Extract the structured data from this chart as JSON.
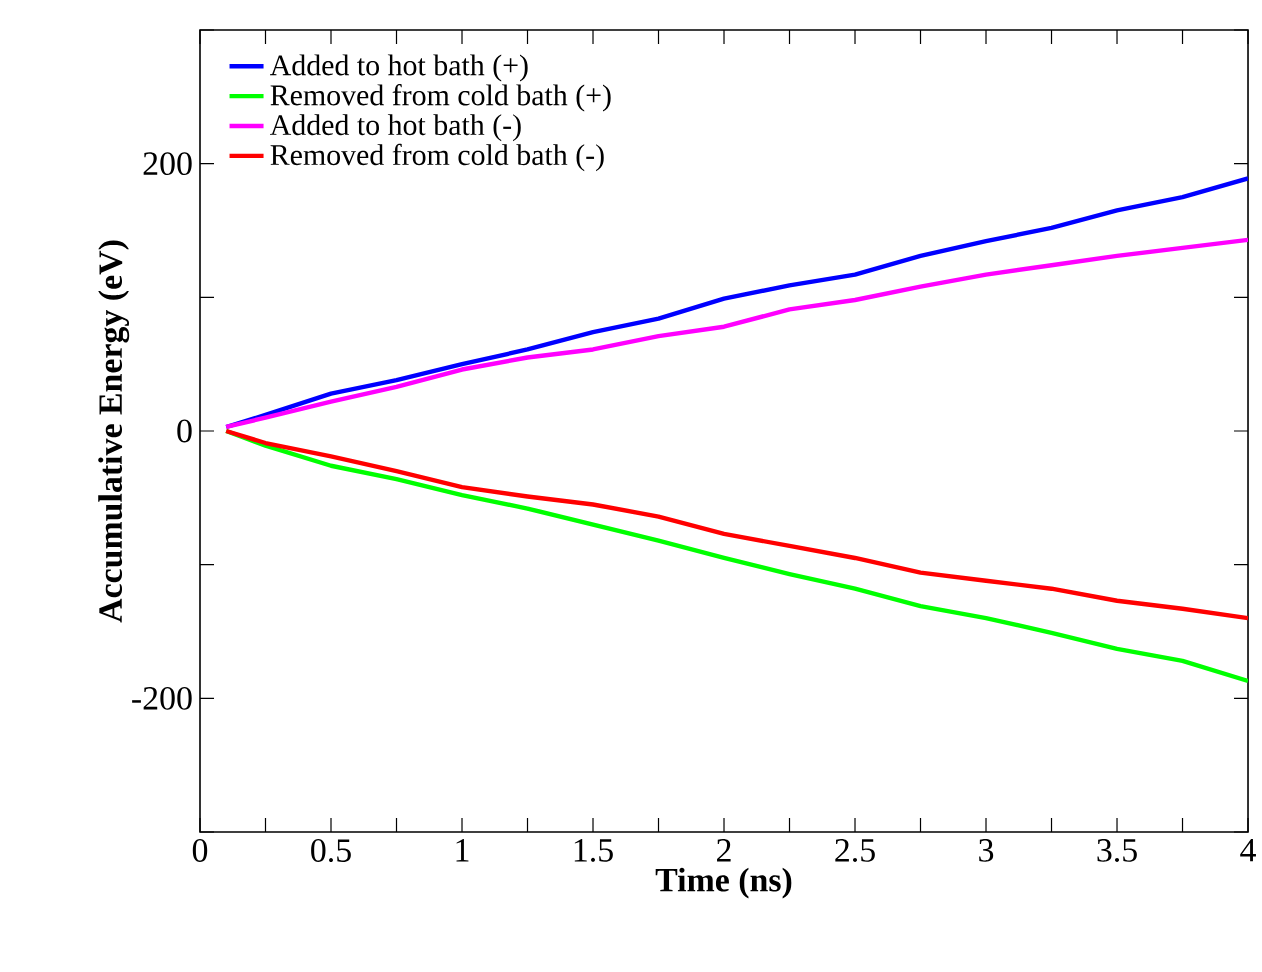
{
  "chart_data": {
    "type": "line",
    "xlabel": "Time (ns)",
    "ylabel": "Accumulative Energy (eV)",
    "x": [
      0.1,
      0.25,
      0.5,
      0.75,
      1.0,
      1.25,
      1.5,
      1.75,
      2.0,
      2.25,
      2.5,
      2.75,
      3.0,
      3.25,
      3.5,
      3.75,
      4.0
    ],
    "series": [
      {
        "name": "Added to hot bath (+)",
        "color": "#0000ff",
        "values": [
          3,
          12,
          28,
          38,
          50,
          61,
          74,
          84,
          99,
          109,
          117,
          131,
          142,
          152,
          165,
          175,
          189
        ]
      },
      {
        "name": "Removed from cold bath (+)",
        "color": "#00ff00",
        "values": [
          0,
          -11,
          -26,
          -36,
          -48,
          -58,
          -70,
          -82,
          -95,
          -107,
          -118,
          -131,
          -140,
          -151,
          -163,
          -172,
          -187
        ]
      },
      {
        "name": "Added to hot bath (-)",
        "color": "#ff00ff",
        "values": [
          3,
          10,
          22,
          33,
          46,
          55,
          61,
          71,
          78,
          91,
          98,
          108,
          117,
          124,
          131,
          137,
          143
        ]
      },
      {
        "name": "Removed from cold bath (-)",
        "color": "#ff0000",
        "values": [
          0,
          -9,
          -19,
          -30,
          -42,
          -49,
          -55,
          -64,
          -77,
          -86,
          -95,
          -106,
          -112,
          -118,
          -127,
          -133,
          -140
        ]
      }
    ],
    "xlim": [
      0,
      4
    ],
    "ylim": [
      -300,
      300
    ],
    "xticks": [
      0,
      {
        "value": 0.25,
        "label": null
      },
      0.5,
      {
        "value": 0.75,
        "label": null
      },
      1,
      {
        "value": 1.25,
        "label": null
      },
      1.5,
      {
        "value": 1.75,
        "label": null
      },
      2,
      {
        "value": 2.25,
        "label": null
      },
      2.5,
      {
        "value": 2.75,
        "label": null
      },
      3,
      {
        "value": 3.25,
        "label": null
      },
      3.5,
      {
        "value": 3.75,
        "label": null
      },
      4
    ],
    "yticks": [
      {
        "value": -300,
        "label": null
      },
      -200,
      {
        "value": -100,
        "label": null
      },
      0,
      {
        "value": 100,
        "label": null
      },
      200,
      {
        "value": 300,
        "label": null
      }
    ],
    "legend": "top left",
    "grid": false,
    "marker": "none",
    "line_style": "solid"
  }
}
